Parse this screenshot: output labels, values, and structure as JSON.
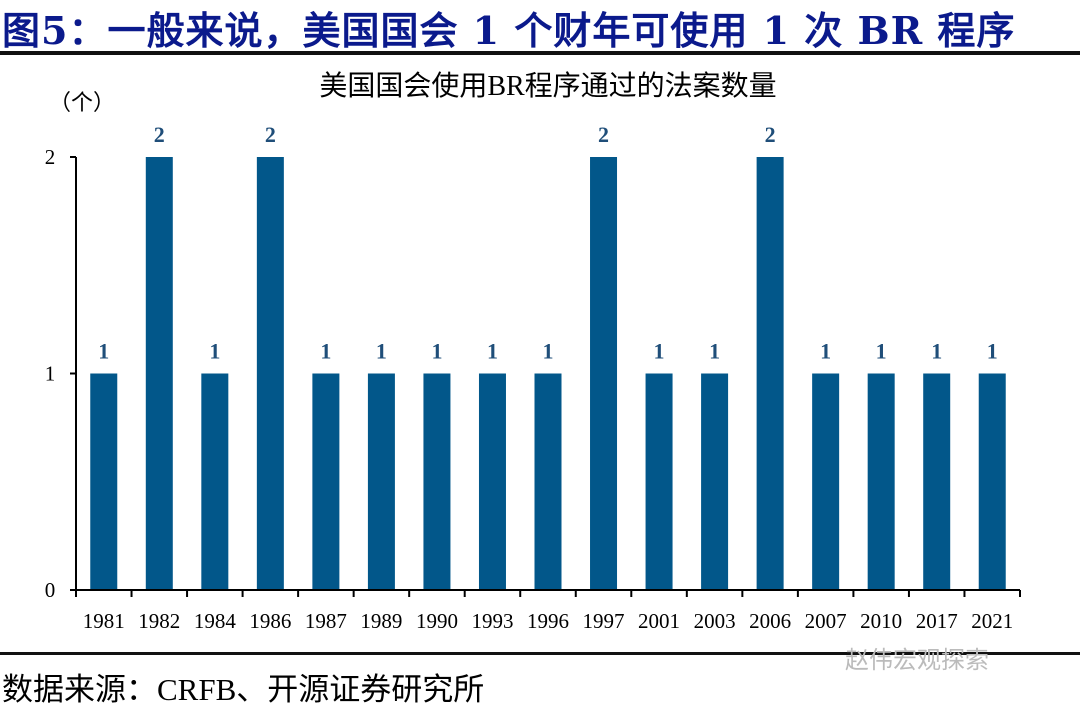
{
  "figure_title": "图5：一般来说，美国国会 1 个财年可使用 1 次 BR 程序",
  "source": "数据来源：CRFB、开源证券研究所",
  "watermark": "赵伟宏观探索",
  "colors": {
    "bar": "#02578a",
    "title": "#0b1a8c",
    "label": "#1f4e79"
  },
  "chart_data": {
    "type": "bar",
    "title": "美国国会使用BR程序通过的法案数量",
    "ylabel": "（个）",
    "xlabel": "",
    "ylim": [
      0,
      2
    ],
    "yticks": [
      0,
      1,
      2
    ],
    "grid": false,
    "categories": [
      "1981",
      "1982",
      "1984",
      "1986",
      "1987",
      "1989",
      "1990",
      "1993",
      "1996",
      "1997",
      "2001",
      "2003",
      "2006",
      "2007",
      "2010",
      "2017",
      "2021"
    ],
    "values": [
      1,
      2,
      1,
      2,
      1,
      1,
      1,
      1,
      1,
      2,
      1,
      1,
      2,
      1,
      1,
      1,
      1
    ]
  }
}
